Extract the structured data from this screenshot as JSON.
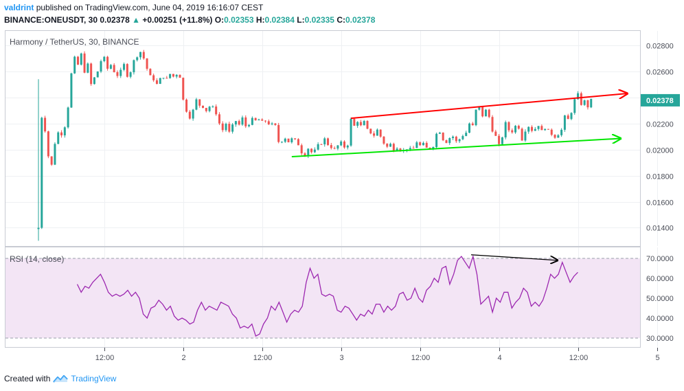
{
  "header": {
    "user": "valdrint",
    "published_text": "published on TradingView.com, June 04, 2019 16:16:07 CEST",
    "symbol": "BINANCE:ONEUSDT, 30",
    "last": "0.02378",
    "up_arrow": "▲",
    "change": "+0.00251 (+11.8%)",
    "o_label": "O:",
    "o_value": "0.02353",
    "h_label": "H:",
    "h_value": "0.02384",
    "l_label": "L:",
    "l_value": "0.02335",
    "c_label": "C:",
    "c_value": "0.02378"
  },
  "footer": {
    "created_text": "Created with",
    "brand": "TradingView",
    "logo_icon": "tradingview-logo-icon"
  },
  "colors": {
    "up": "#26a69a",
    "down": "#ef5350",
    "rsi_line": "#9c27b0",
    "rsi_band": "#f3e5f5",
    "trend_upper": "#ff0000",
    "trend_lower": "#00e600",
    "divergence": "#000000",
    "last_price_bg": "#26a69a"
  },
  "chart_data": [
    {
      "type": "candlestick",
      "title": "Harmony / TetherUS, 30, BINANCE",
      "y_ticks": [
        "0.02800",
        "0.02600",
        "0.02400",
        "0.02200",
        "0.02000",
        "0.01800",
        "0.01600",
        "0.01400"
      ],
      "ylim": [
        0.0126,
        0.0291
      ],
      "last_price_label": "0.02378",
      "x_ticks": [
        {
          "label": "12:00",
          "t": 10
        },
        {
          "label": "2",
          "t": 22
        },
        {
          "label": "12:00",
          "t": 34
        },
        {
          "label": "3",
          "t": 46
        },
        {
          "label": "12:00",
          "t": 58
        },
        {
          "label": "4",
          "t": 70
        },
        {
          "label": "12:00",
          "t": 82
        },
        {
          "label": "5",
          "t": 94
        }
      ],
      "close_path": [
        [
          0,
          0.014
        ],
        [
          0.5,
          0.0225
        ],
        [
          1,
          0.0215
        ],
        [
          1.5,
          0.0195
        ],
        [
          2,
          0.0188
        ],
        [
          2.5,
          0.0205
        ],
        [
          3,
          0.0213
        ],
        [
          3.5,
          0.0212
        ],
        [
          4,
          0.0218
        ],
        [
          4.5,
          0.0233
        ],
        [
          5,
          0.0258
        ],
        [
          5.5,
          0.027
        ],
        [
          6,
          0.0265
        ],
        [
          6.5,
          0.0273
        ],
        [
          7,
          0.026
        ],
        [
          7.5,
          0.0265
        ],
        [
          8,
          0.025
        ],
        [
          8.5,
          0.0255
        ],
        [
          9,
          0.026
        ],
        [
          9.5,
          0.0268
        ],
        [
          10,
          0.027
        ],
        [
          10.5,
          0.0262
        ],
        [
          11,
          0.0265
        ],
        [
          11.5,
          0.026
        ],
        [
          12,
          0.0257
        ],
        [
          12.5,
          0.026
        ],
        [
          13,
          0.0265
        ],
        [
          13.5,
          0.0257
        ],
        [
          14,
          0.026
        ],
        [
          14.5,
          0.0268
        ],
        [
          15,
          0.0272
        ],
        [
          15.5,
          0.0275
        ],
        [
          16,
          0.027
        ],
        [
          16.5,
          0.0262
        ],
        [
          17,
          0.0256
        ],
        [
          17.5,
          0.0254
        ],
        [
          18,
          0.025
        ],
        [
          18.5,
          0.0254
        ],
        [
          19,
          0.0256
        ],
        [
          19.5,
          0.0254
        ],
        [
          20,
          0.0258
        ],
        [
          20.5,
          0.0256
        ],
        [
          21,
          0.0258
        ],
        [
          21.5,
          0.0256
        ],
        [
          22,
          0.0238
        ],
        [
          22.5,
          0.023
        ],
        [
          23,
          0.0225
        ],
        [
          23.5,
          0.023
        ],
        [
          24,
          0.0238
        ],
        [
          24.5,
          0.0234
        ],
        [
          25,
          0.0233
        ],
        [
          25.5,
          0.023
        ],
        [
          26,
          0.0233
        ],
        [
          26.5,
          0.0232
        ],
        [
          27,
          0.0228
        ],
        [
          27.5,
          0.022
        ],
        [
          28,
          0.0215
        ],
        [
          28.5,
          0.022
        ],
        [
          29,
          0.0213
        ],
        [
          29.5,
          0.0218
        ],
        [
          30,
          0.0222
        ],
        [
          30.5,
          0.0219
        ],
        [
          31,
          0.0224
        ],
        [
          31.5,
          0.0218
        ],
        [
          32,
          0.022
        ],
        [
          32.5,
          0.0223
        ],
        [
          33,
          0.0222
        ],
        [
          33.5,
          0.0223
        ],
        [
          34,
          0.0221
        ],
        [
          34.5,
          0.0222
        ],
        [
          35,
          0.022
        ],
        [
          35.5,
          0.0219
        ],
        [
          36,
          0.0218
        ],
        [
          36.5,
          0.0206
        ],
        [
          37,
          0.0207
        ],
        [
          37.5,
          0.0209
        ],
        [
          38,
          0.0206
        ],
        [
          38.5,
          0.0208
        ],
        [
          39,
          0.0207
        ],
        [
          39.5,
          0.0204
        ],
        [
          40,
          0.0198
        ],
        [
          40.5,
          0.0196
        ],
        [
          41,
          0.0201
        ],
        [
          41.5,
          0.0198
        ],
        [
          42,
          0.0199
        ],
        [
          42.5,
          0.0203
        ],
        [
          43,
          0.0205
        ],
        [
          43.5,
          0.0208
        ],
        [
          44,
          0.0204
        ],
        [
          44.5,
          0.0202
        ],
        [
          45,
          0.02
        ],
        [
          45.5,
          0.0203
        ],
        [
          46,
          0.0205
        ],
        [
          46.5,
          0.0202
        ],
        [
          47,
          0.0204
        ],
        [
          47.5,
          0.0223
        ],
        [
          48,
          0.0218
        ],
        [
          48.5,
          0.0222
        ],
        [
          49,
          0.0218
        ],
        [
          49.5,
          0.0221
        ],
        [
          50,
          0.0215
        ],
        [
          50.5,
          0.0213
        ],
        [
          51,
          0.0211
        ],
        [
          51.5,
          0.0215
        ],
        [
          52,
          0.021
        ],
        [
          52.5,
          0.0205
        ],
        [
          53,
          0.0202
        ],
        [
          53.5,
          0.0204
        ],
        [
          54,
          0.02
        ],
        [
          54.5,
          0.0202
        ],
        [
          55,
          0.02
        ],
        [
          55.5,
          0.0199
        ],
        [
          56,
          0.0201
        ],
        [
          56.5,
          0.02
        ],
        [
          57,
          0.0201
        ],
        [
          57.5,
          0.0206
        ],
        [
          58,
          0.0203
        ],
        [
          58.5,
          0.0204
        ],
        [
          59,
          0.0201
        ],
        [
          59.5,
          0.0201
        ],
        [
          60,
          0.0203
        ],
        [
          60.5,
          0.0212
        ],
        [
          61,
          0.0214
        ],
        [
          61.5,
          0.0208
        ],
        [
          62,
          0.0206
        ],
        [
          62.5,
          0.0209
        ],
        [
          63,
          0.021
        ],
        [
          63.5,
          0.0206
        ],
        [
          64,
          0.0208
        ],
        [
          64.5,
          0.0211
        ],
        [
          65,
          0.0213
        ],
        [
          65.5,
          0.022
        ],
        [
          66,
          0.0218
        ],
        [
          66.5,
          0.023
        ],
        [
          67,
          0.0232
        ],
        [
          67.5,
          0.0226
        ],
        [
          68,
          0.023
        ],
        [
          68.5,
          0.0225
        ],
        [
          69,
          0.0215
        ],
        [
          69.5,
          0.021
        ],
        [
          70,
          0.0203
        ],
        [
          70.5,
          0.021
        ],
        [
          71,
          0.022
        ],
        [
          71.5,
          0.0215
        ],
        [
          72,
          0.0214
        ],
        [
          72.5,
          0.0218
        ],
        [
          73,
          0.0217
        ],
        [
          73.5,
          0.0208
        ],
        [
          74,
          0.0215
        ],
        [
          74.5,
          0.0218
        ],
        [
          75,
          0.0215
        ],
        [
          75.5,
          0.0216
        ],
        [
          76,
          0.0219
        ],
        [
          76.5,
          0.0214
        ],
        [
          77,
          0.0217
        ],
        [
          77.5,
          0.0214
        ],
        [
          78,
          0.0212
        ],
        [
          78.5,
          0.021
        ],
        [
          79,
          0.0212
        ],
        [
          79.5,
          0.0215
        ],
        [
          80,
          0.0225
        ],
        [
          80.5,
          0.0223
        ],
        [
          81,
          0.0229
        ],
        [
          81.5,
          0.0238
        ],
        [
          82,
          0.0242
        ],
        [
          82.5,
          0.0235
        ],
        [
          83,
          0.0237
        ],
        [
          83.5,
          0.0233
        ],
        [
          84,
          0.02378
        ]
      ],
      "trendlines": [
        {
          "name": "upper",
          "from": [
            47.5,
            0.0224
          ],
          "to": [
            89.5,
            0.0243
          ],
          "arrow": true
        },
        {
          "name": "lower",
          "from": [
            38.5,
            0.01945
          ],
          "to": [
            88.5,
            0.02085
          ],
          "arrow": true
        }
      ]
    },
    {
      "type": "line",
      "title": "RSI (14, close)",
      "y_ticks": [
        "70.0000",
        "60.0000",
        "50.0000",
        "40.0000",
        "30.0000"
      ],
      "ylim": [
        25.5,
        75.5
      ],
      "band": [
        30,
        70
      ],
      "values": [
        [
          10,
          57
        ],
        [
          11,
          53
        ],
        [
          12,
          56
        ],
        [
          13,
          55
        ],
        [
          14,
          58
        ],
        [
          15,
          60
        ],
        [
          16,
          62
        ],
        [
          17,
          58
        ],
        [
          18,
          53
        ],
        [
          19,
          51
        ],
        [
          20,
          52
        ],
        [
          21,
          51
        ],
        [
          22,
          52
        ],
        [
          23,
          54
        ],
        [
          24,
          51
        ],
        [
          25,
          53
        ],
        [
          26,
          50
        ],
        [
          27,
          42
        ],
        [
          28,
          40
        ],
        [
          29,
          45
        ],
        [
          30,
          46
        ],
        [
          31,
          49
        ],
        [
          32,
          47
        ],
        [
          33,
          44
        ],
        [
          34,
          46
        ],
        [
          35,
          41
        ],
        [
          36,
          39
        ],
        [
          37,
          40
        ],
        [
          38,
          39
        ],
        [
          39,
          37
        ],
        [
          40,
          38
        ],
        [
          41,
          44
        ],
        [
          42,
          48
        ],
        [
          43,
          44
        ],
        [
          44,
          46
        ],
        [
          45,
          45
        ],
        [
          46,
          44
        ],
        [
          47,
          48
        ],
        [
          48,
          47
        ],
        [
          49,
          46
        ],
        [
          50,
          42
        ],
        [
          51,
          40
        ],
        [
          52,
          35
        ],
        [
          53,
          36
        ],
        [
          54,
          35
        ],
        [
          55,
          37
        ],
        [
          56,
          31
        ],
        [
          57,
          32
        ],
        [
          58,
          37
        ],
        [
          59,
          40
        ],
        [
          60,
          46
        ],
        [
          61,
          44
        ],
        [
          62,
          48
        ],
        [
          63,
          43
        ],
        [
          64,
          38
        ],
        [
          65,
          42
        ],
        [
          66,
          44
        ],
        [
          67,
          43
        ],
        [
          68,
          46
        ],
        [
          69,
          58
        ],
        [
          70,
          65
        ],
        [
          71,
          60
        ],
        [
          72,
          62
        ],
        [
          73,
          52
        ],
        [
          74,
          51
        ],
        [
          75,
          52
        ],
        [
          76,
          51
        ],
        [
          77,
          44
        ],
        [
          78,
          43
        ],
        [
          79,
          46
        ],
        [
          80,
          45
        ],
        [
          81,
          42
        ],
        [
          82,
          39
        ],
        [
          83,
          42
        ],
        [
          84,
          41
        ],
        [
          85,
          44
        ],
        [
          86,
          42
        ],
        [
          87,
          47
        ],
        [
          88,
          47
        ],
        [
          89,
          43
        ],
        [
          90,
          46
        ],
        [
          91,
          44
        ],
        [
          92,
          46
        ],
        [
          93,
          52
        ],
        [
          94,
          53
        ],
        [
          95,
          49
        ],
        [
          96,
          50
        ],
        [
          97,
          55
        ],
        [
          98,
          50
        ],
        [
          99,
          48
        ],
        [
          100,
          54
        ],
        [
          101,
          56
        ],
        [
          102,
          60
        ],
        [
          103,
          58
        ],
        [
          104,
          65
        ],
        [
          105,
          66
        ],
        [
          106,
          57
        ],
        [
          107,
          62
        ],
        [
          108,
          69
        ],
        [
          109,
          71
        ],
        [
          110,
          68
        ],
        [
          111,
          65
        ],
        [
          112,
          71
        ],
        [
          113,
          62
        ],
        [
          114,
          47
        ],
        [
          115,
          49
        ],
        [
          116,
          51
        ],
        [
          117,
          43
        ],
        [
          118,
          50
        ],
        [
          119,
          48
        ],
        [
          120,
          53
        ],
        [
          121,
          53
        ],
        [
          122,
          45
        ],
        [
          123,
          48
        ],
        [
          124,
          50
        ],
        [
          125,
          55
        ],
        [
          126,
          53
        ],
        [
          127,
          46
        ],
        [
          128,
          48
        ],
        [
          129,
          46
        ],
        [
          130,
          49
        ],
        [
          131,
          55
        ],
        [
          132,
          62
        ],
        [
          133,
          60
        ],
        [
          134,
          62
        ],
        [
          135,
          68
        ],
        [
          136,
          63
        ],
        [
          137,
          58
        ],
        [
          138,
          61
        ],
        [
          139,
          63
        ]
      ],
      "divergence": {
        "from": [
          111.5,
          71.8
        ],
        "to": [
          133.8,
          69.0
        ]
      }
    }
  ]
}
